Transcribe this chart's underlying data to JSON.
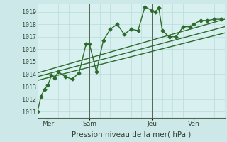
{
  "background_color": "#cce8e8",
  "plot_bg_color": "#d8f0f0",
  "grid_color": "#b8ddd8",
  "line_color": "#2d6b2d",
  "sep_line_color": "#556655",
  "title": "Pression niveau de la mer( hPa )",
  "ylabel_ticks": [
    1011,
    1012,
    1013,
    1014,
    1015,
    1016,
    1017,
    1018,
    1019
  ],
  "ylim": [
    1010.5,
    1019.6
  ],
  "xlim": [
    0,
    108
  ],
  "xtick_positions": [
    6,
    30,
    66,
    90
  ],
  "xtick_labels": [
    "Mer",
    "Sam",
    "Jeu",
    "Ven"
  ],
  "vline_positions": [
    6,
    30,
    66,
    90
  ],
  "series_main": {
    "x": [
      0,
      2,
      4,
      6,
      8,
      10,
      12,
      16,
      20,
      24,
      28,
      30,
      34,
      38,
      42,
      46,
      50,
      54,
      58,
      62,
      66,
      68,
      70,
      72,
      76,
      80,
      84,
      88,
      90,
      94,
      98,
      102,
      106
    ],
    "y": [
      1011.0,
      1012.2,
      1012.8,
      1013.1,
      1013.9,
      1013.7,
      1014.2,
      1013.8,
      1013.6,
      1014.1,
      1016.4,
      1016.4,
      1014.2,
      1016.7,
      1017.6,
      1018.0,
      1017.2,
      1017.6,
      1017.5,
      1019.4,
      1019.1,
      1019.0,
      1019.3,
      1017.5,
      1017.0,
      1017.0,
      1017.8,
      1017.8,
      1018.0,
      1018.3,
      1018.3,
      1018.4,
      1018.4
    ],
    "marker": "D",
    "markersize": 2.5,
    "linewidth": 1.0
  },
  "series_trends": [
    {
      "x": [
        0,
        108
      ],
      "y": [
        1014.1,
        1018.4
      ]
    },
    {
      "x": [
        0,
        108
      ],
      "y": [
        1013.8,
        1017.8
      ]
    },
    {
      "x": [
        0,
        108
      ],
      "y": [
        1013.5,
        1017.3
      ]
    }
  ],
  "trend_linewidth": 1.0
}
